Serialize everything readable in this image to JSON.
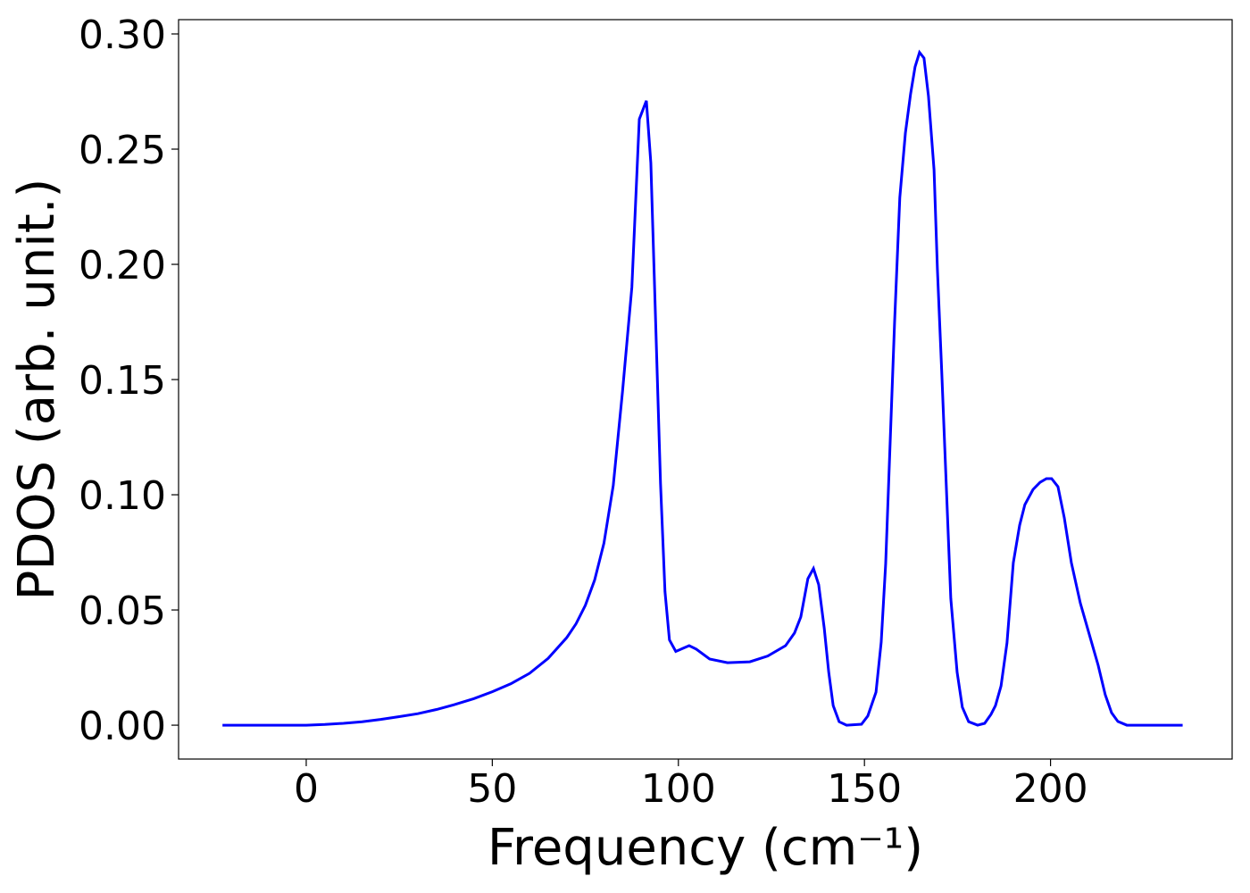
{
  "chart_data": {
    "type": "line",
    "x_label": "Frequency (cm⁻¹)",
    "y_label": "PDOS (arb. unit.)",
    "xlim": [
      -34.3,
      248.8
    ],
    "ylim": [
      -0.0147,
      0.3062
    ],
    "xticks": [
      0,
      50,
      100,
      150,
      200
    ],
    "yticks": [
      {
        "value": 0,
        "label": "0.00"
      },
      {
        "value": 0.05,
        "label": "0.05"
      },
      {
        "value": 0.1,
        "label": "0.10"
      },
      {
        "value": 0.15,
        "label": "0.15"
      },
      {
        "value": 0.2,
        "label": "0.20"
      },
      {
        "value": 0.25,
        "label": "0.25"
      },
      {
        "value": 0.3,
        "label": "0.30"
      }
    ],
    "series": [
      {
        "color": "#0000ff",
        "x": [
          -22.5,
          0,
          5,
          10,
          15,
          20,
          25,
          30,
          35,
          40,
          45,
          50,
          55,
          60,
          65,
          70,
          72.5,
          75,
          77.5,
          80,
          82.5,
          85,
          87.5,
          89.5,
          91.4,
          92.6,
          95.2,
          96.4,
          97.6,
          99.3,
          102.9,
          104.8,
          108.4,
          113.2,
          119.2,
          124,
          128.8,
          131.2,
          132.9,
          134.8,
          136.3,
          137.7,
          139.2,
          140.4,
          141.6,
          143.2,
          145.2,
          149.2,
          150.9,
          153.1,
          154.5,
          155.7,
          158.1,
          159.5,
          161.0,
          162.4,
          163.6,
          164.8,
          166.0,
          167.2,
          168.7,
          169.6,
          170.8,
          173.2,
          174.9,
          176.3,
          178.0,
          180.4,
          182.3,
          184.0,
          185.2,
          186.7,
          188.3,
          190,
          191.7,
          193.1,
          195.3,
          197.2,
          198.9,
          200.3,
          202,
          203.7,
          205.6,
          208,
          210.4,
          212.8,
          214.7,
          216.4,
          218.1,
          220.5,
          235.5
        ],
        "values": [
          0,
          0,
          0.0003,
          0.0008,
          0.0015,
          0.0025,
          0.0037,
          0.005,
          0.0068,
          0.009,
          0.0115,
          0.0145,
          0.018,
          0.0225,
          0.029,
          0.038,
          0.044,
          0.052,
          0.063,
          0.079,
          0.104,
          0.145,
          0.19,
          0.263,
          0.271,
          0.244,
          0.105,
          0.058,
          0.037,
          0.032,
          0.0345,
          0.033,
          0.0287,
          0.0271,
          0.0275,
          0.03,
          0.0345,
          0.04,
          0.047,
          0.0636,
          0.068,
          0.061,
          0.042,
          0.023,
          0.0085,
          0.0015,
          0,
          0.0004,
          0.004,
          0.0143,
          0.036,
          0.07,
          0.175,
          0.229,
          0.257,
          0.274,
          0.2857,
          0.292,
          0.2895,
          0.273,
          0.241,
          0.198,
          0.152,
          0.055,
          0.023,
          0.0078,
          0.0015,
          0,
          0.0008,
          0.0047,
          0.0085,
          0.017,
          0.0357,
          0.0705,
          0.0868,
          0.0957,
          0.1023,
          0.1054,
          0.107,
          0.107,
          0.1035,
          0.09,
          0.0705,
          0.053,
          0.0395,
          0.026,
          0.0132,
          0.0054,
          0.0016,
          0,
          0
        ]
      }
    ]
  }
}
